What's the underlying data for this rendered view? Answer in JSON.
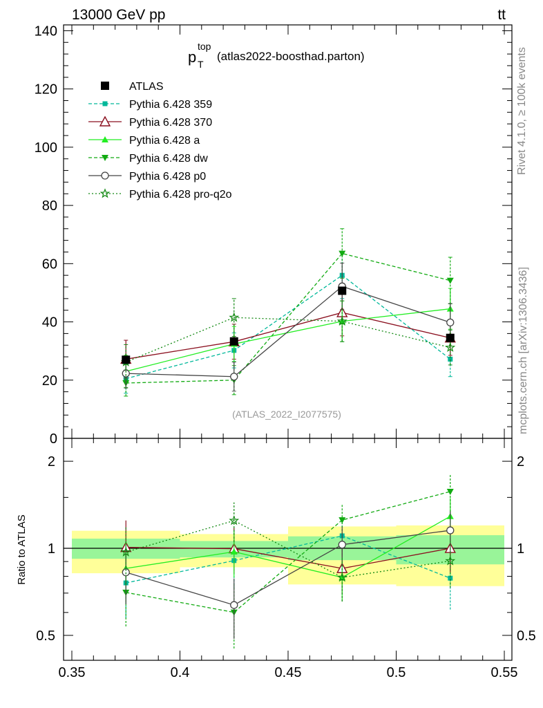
{
  "header": {
    "left": "13000 GeV pp",
    "right_main": "tt",
    "right_bar": "̅"
  },
  "side": {
    "rivet": "Rivet 4.1.0, ≥ 100k events",
    "mcplots": "mcplots.cern.ch [arXiv:1306.3436]"
  },
  "plot": {
    "title_main": "p",
    "title_sup": "top",
    "title_sub": "T",
    "title_rest": "(atlas2022-boosthad.parton)",
    "watermark": "(ATLAS_2022_I2077575)",
    "ratio_ylabel": "Ratio to ATLAS"
  },
  "colors": {
    "data": "#000000",
    "p359": "#00b89a",
    "p370": "#8a0f1e",
    "pa": "#22ee22",
    "pdw": "#11aa11",
    "pp0": "#444444",
    "pq2o": "#118811",
    "band_stat": "#99f599",
    "band_syst": "#ffff99"
  },
  "chart_data": {
    "type": "line",
    "bins": [
      [
        0.35,
        0.4
      ],
      [
        0.4,
        0.45
      ],
      [
        0.45,
        0.5
      ],
      [
        0.5,
        0.55
      ]
    ],
    "x": [
      0.375,
      0.425,
      0.475,
      0.525
    ],
    "xlim": [
      0.35,
      0.55
    ],
    "ylim": [
      0,
      142
    ],
    "ratio_ylim": [
      0.41,
      2.4
    ],
    "x_ticks": [
      "0.35",
      "0.4",
      "0.45",
      "0.5",
      "0.55"
    ],
    "y_ticks": [
      "0",
      "20",
      "40",
      "60",
      "80",
      "100",
      "120",
      "140"
    ],
    "ratio_ticks": [
      "0.5",
      "1",
      "2"
    ],
    "ratio_band_stat": [
      [
        0.92,
        1.08
      ],
      [
        0.93,
        1.06
      ],
      [
        0.91,
        1.1
      ],
      [
        0.88,
        1.11
      ]
    ],
    "ratio_band_syst": [
      [
        0.82,
        1.15
      ],
      [
        0.86,
        1.12
      ],
      [
        0.75,
        1.19
      ],
      [
        0.74,
        1.2
      ]
    ],
    "series": [
      {
        "name": "ATLAS",
        "key": "data",
        "values": [
          27,
          33.3,
          50.7,
          34.5
        ],
        "errors": [
          0,
          0,
          0,
          0
        ]
      },
      {
        "name": "Pythia 6.428 359",
        "key": "p359",
        "values": [
          20.5,
          30.2,
          56,
          27.2
        ],
        "errors": [
          5,
          6,
          8,
          6
        ]
      },
      {
        "name": "Pythia 6.428 370",
        "key": "p370",
        "values": [
          27.2,
          33.2,
          43.2,
          34.5
        ],
        "errors": [
          6.5,
          6,
          8,
          6
        ]
      },
      {
        "name": "Pythia 6.428 a",
        "key": "pa",
        "values": [
          23,
          32.4,
          40.2,
          44.5
        ],
        "errors": [
          5.5,
          6,
          7,
          7
        ]
      },
      {
        "name": "Pythia 6.428 dw",
        "key": "pdw",
        "values": [
          19,
          20,
          63.5,
          54.2
        ],
        "errors": [
          4.5,
          5,
          8.5,
          8
        ]
      },
      {
        "name": "Pythia 6.428 p0",
        "key": "pp0",
        "values": [
          22.3,
          21.2,
          52.2,
          39.8
        ],
        "errors": [
          5,
          5,
          8,
          6.5
        ]
      },
      {
        "name": "Pythia 6.428 pro-q2o",
        "key": "pq2o",
        "values": [
          26.2,
          41.5,
          40.2,
          31.2
        ],
        "errors": [
          6,
          6.5,
          7,
          6
        ]
      }
    ]
  }
}
